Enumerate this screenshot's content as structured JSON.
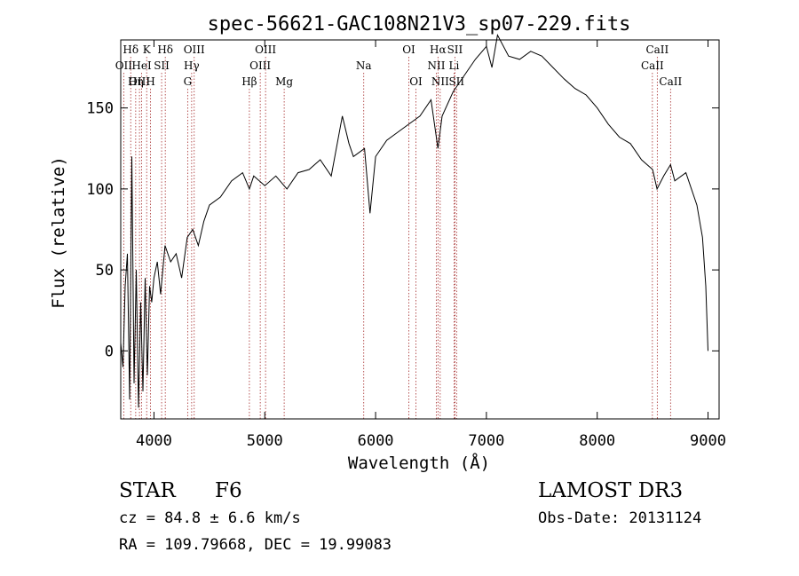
{
  "chart_data": {
    "type": "line",
    "title": "spec-56621-GAC108N21V3_sp07-229.fits",
    "xlabel": "Wavelength (Å)",
    "ylabel": "Flux (relative)",
    "xlim": [
      3700,
      9100
    ],
    "ylim": [
      -42,
      192
    ],
    "x_ticks": [
      4000,
      5000,
      6000,
      7000,
      8000,
      9000
    ],
    "y_ticks": [
      0,
      50,
      100,
      150
    ],
    "line_color": "#000000",
    "marker_color": "#a52a2a",
    "spectrum": {
      "x": [
        3700,
        3720,
        3740,
        3760,
        3780,
        3800,
        3820,
        3840,
        3860,
        3880,
        3900,
        3920,
        3940,
        3960,
        3980,
        4000,
        4030,
        4060,
        4100,
        4150,
        4200,
        4250,
        4300,
        4350,
        4400,
        4450,
        4500,
        4600,
        4700,
        4800,
        4861,
        4900,
        5000,
        5100,
        5200,
        5300,
        5400,
        5500,
        5600,
        5700,
        5760,
        5800,
        5900,
        5950,
        6000,
        6100,
        6200,
        6300,
        6400,
        6500,
        6563,
        6600,
        6700,
        6800,
        6900,
        7000,
        7050,
        7100,
        7200,
        7300,
        7400,
        7500,
        7600,
        7700,
        7800,
        7900,
        8000,
        8100,
        8200,
        8300,
        8400,
        8500,
        8540,
        8600,
        8662,
        8700,
        8800,
        8900,
        8950,
        8980,
        9000
      ],
      "flux": [
        5,
        -10,
        40,
        60,
        -30,
        120,
        -20,
        50,
        -35,
        30,
        -25,
        45,
        -15,
        40,
        30,
        45,
        55,
        35,
        65,
        55,
        60,
        45,
        70,
        75,
        65,
        80,
        90,
        95,
        105,
        110,
        100,
        108,
        102,
        108,
        100,
        110,
        112,
        118,
        108,
        145,
        128,
        120,
        125,
        85,
        120,
        130,
        135,
        140,
        145,
        155,
        125,
        145,
        160,
        170,
        180,
        188,
        175,
        195,
        182,
        180,
        185,
        182,
        175,
        168,
        162,
        158,
        150,
        140,
        132,
        128,
        118,
        112,
        100,
        108,
        115,
        105,
        110,
        90,
        70,
        40,
        0
      ]
    },
    "lines": [
      {
        "name": "Hδ",
        "x": 3790,
        "row": 0
      },
      {
        "name": "K",
        "x": 3934,
        "row": 0
      },
      {
        "name": "Hδ",
        "x": 4102,
        "row": 0
      },
      {
        "name": "OIII",
        "x": 4363,
        "row": 0
      },
      {
        "name": "OIII",
        "x": 5007,
        "row": 0
      },
      {
        "name": "OI",
        "x": 6300,
        "row": 0
      },
      {
        "name": "Hα",
        "x": 6563,
        "row": 0
      },
      {
        "name": "SII",
        "x": 6716,
        "row": 0
      },
      {
        "name": "CaII",
        "x": 8542,
        "row": 0
      },
      {
        "name": "OII",
        "x": 3727,
        "row": 1
      },
      {
        "name": "HeI",
        "x": 3889,
        "row": 1
      },
      {
        "name": "SII",
        "x": 4069,
        "row": 1
      },
      {
        "name": "Hγ",
        "x": 4340,
        "row": 1
      },
      {
        "name": "OIII",
        "x": 4959,
        "row": 1
      },
      {
        "name": "Na",
        "x": 5893,
        "row": 1
      },
      {
        "name": "NII",
        "x": 6548,
        "row": 1
      },
      {
        "name": "Li",
        "x": 6708,
        "row": 1
      },
      {
        "name": "CaII",
        "x": 8498,
        "row": 1
      },
      {
        "name": "OIII",
        "x": 3869,
        "row": 2
      },
      {
        "name": "Hη",
        "x": 3835,
        "row": 2
      },
      {
        "name": "H",
        "x": 3969,
        "row": 2
      },
      {
        "name": "G",
        "x": 4304,
        "row": 2
      },
      {
        "name": "Hβ",
        "x": 4861,
        "row": 2
      },
      {
        "name": "Mg",
        "x": 5175,
        "row": 2
      },
      {
        "name": "OI",
        "x": 6364,
        "row": 2
      },
      {
        "name": "NII",
        "x": 6583,
        "row": 2
      },
      {
        "name": "SII",
        "x": 6731,
        "row": 2
      },
      {
        "name": "CaII",
        "x": 8662,
        "row": 2
      }
    ]
  },
  "info": {
    "class_label": "STAR",
    "subclass": "F6",
    "survey": "LAMOST DR3",
    "cz": "cz = 84.8 ± 6.6 km/s",
    "obs_date": "Obs-Date: 20131124",
    "radec": "RA = 109.79668, DEC =  19.99083"
  }
}
